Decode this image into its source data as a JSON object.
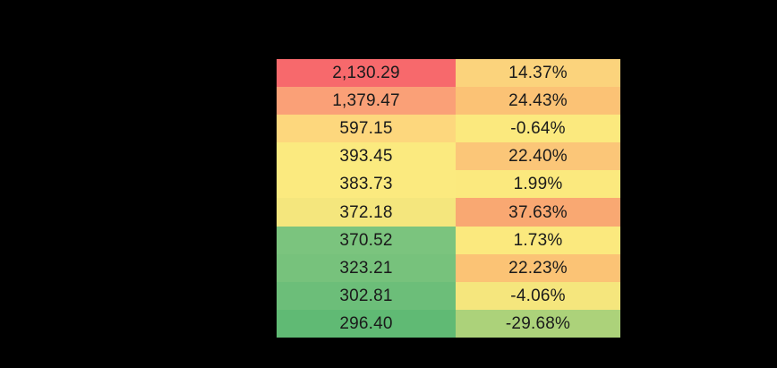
{
  "canvas": {
    "background_color": "#000000",
    "text_color": "#1a1a1a"
  },
  "heatmap_table": {
    "rows": [
      {
        "value": "2,130.29",
        "pct": "14.37%",
        "value_bg": "#f7696c",
        "pct_bg": "#fbd37c"
      },
      {
        "value": "1,379.47",
        "pct": "24.43%",
        "value_bg": "#faa077",
        "pct_bg": "#fbc275"
      },
      {
        "value": "597.15",
        "pct": "-0.64%",
        "value_bg": "#fdd77d",
        "pct_bg": "#fbe97e"
      },
      {
        "value": "393.45",
        "pct": "22.40%",
        "value_bg": "#fbea7f",
        "pct_bg": "#fbc678"
      },
      {
        "value": "383.73",
        "pct": "1.99%",
        "value_bg": "#fbea7f",
        "pct_bg": "#fbe97e"
      },
      {
        "value": "372.18",
        "pct": "37.63%",
        "value_bg": "#f4e67d",
        "pct_bg": "#f9a872"
      },
      {
        "value": "370.52",
        "pct": "1.73%",
        "value_bg": "#7bc47e",
        "pct_bg": "#fbe97e"
      },
      {
        "value": "323.21",
        "pct": "22.23%",
        "value_bg": "#77c27c",
        "pct_bg": "#fbc375"
      },
      {
        "value": "302.81",
        "pct": "-4.06%",
        "value_bg": "#6cbe79",
        "pct_bg": "#f5e67d"
      },
      {
        "value": "296.40",
        "pct": "-29.68%",
        "value_bg": "#60ba74",
        "pct_bg": "#acd27a"
      }
    ]
  },
  "chart_data": {
    "type": "heatmap",
    "columns": [
      "value",
      "percent_change"
    ],
    "values": [
      2130.29,
      1379.47,
      597.15,
      393.45,
      383.73,
      372.18,
      370.52,
      323.21,
      302.81,
      296.4
    ],
    "percent_change": [
      14.37,
      24.43,
      -0.64,
      22.4,
      1.99,
      37.63,
      1.73,
      22.23,
      -4.06,
      -29.68
    ],
    "color_scale_high": "#f7696c",
    "color_scale_mid": "#fbe97e",
    "color_scale_low": "#60ba74",
    "legend_position": "none",
    "grid": false
  }
}
